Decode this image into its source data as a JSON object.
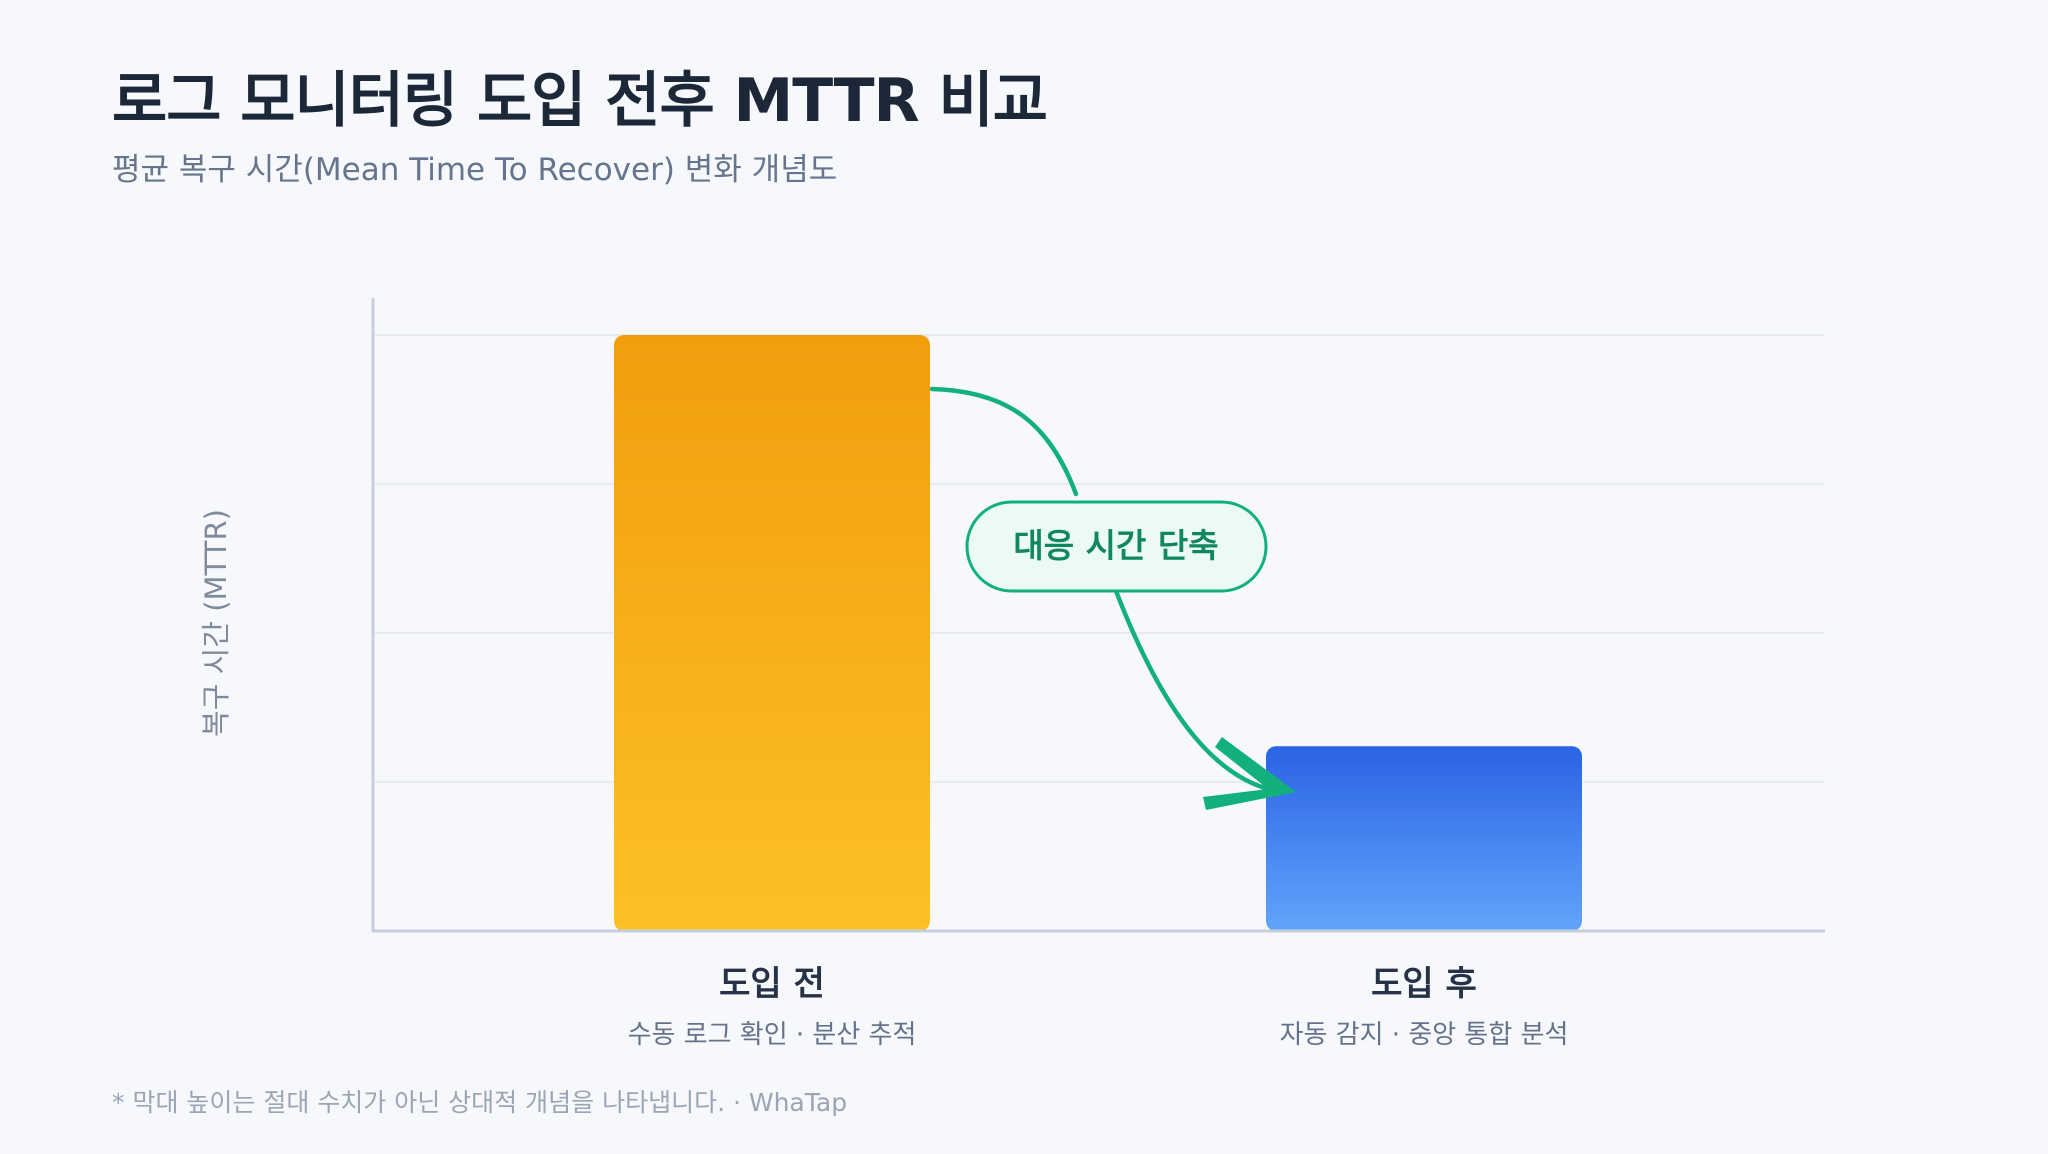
{
  "header": {
    "title": "로그 모니터링 도입 전후 MTTR 비교",
    "subtitle": "평균 복구 시간(Mean Time To Recover) 변화 개념도"
  },
  "footer": {
    "note": "* 막대 높이는 절대 수치가 아닌 상대적 개념을 나타냅니다. · WhaTap"
  },
  "chart_data": {
    "type": "bar",
    "ylabel": "복구 시간 (MTTR)",
    "categories": [
      "도입 전",
      "도입 후"
    ],
    "captions": [
      "수동 로그 확인 · 분산 추적",
      "자동 감지 · 중앙 통합 분석"
    ],
    "values": [
      100,
      31
    ],
    "ylim": [
      0,
      100
    ],
    "grid": true,
    "annotation": "대응 시간 단축",
    "colors": {
      "before_top": "#f29d0d",
      "before_bottom": "#fbc126",
      "after_top": "#2a63e4",
      "after_bottom": "#62a4fb",
      "accent": "#12b07d",
      "axis": "#c5cfdc",
      "grid": "#e2e7ef"
    }
  }
}
